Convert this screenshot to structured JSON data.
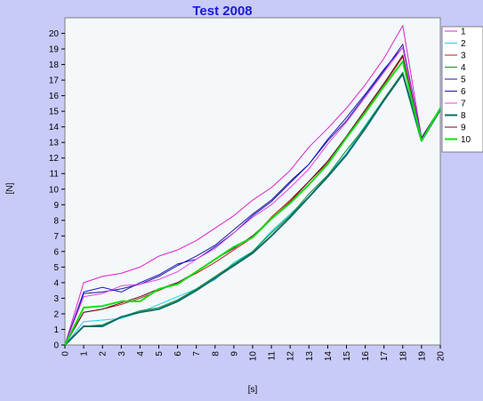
{
  "chart_data": {
    "type": "line",
    "title": "Test 2008",
    "xlabel": "[s]",
    "ylabel": "[N]",
    "xlim": [
      0,
      20
    ],
    "ylim": [
      0,
      21
    ],
    "x": [
      0,
      1,
      2,
      3,
      4,
      5,
      6,
      7,
      8,
      9,
      10,
      11,
      12,
      13,
      14,
      15,
      16,
      17,
      18,
      19,
      20
    ],
    "x_ticks": [
      "0",
      "1",
      "2",
      "3",
      "4",
      "5",
      "6",
      "7",
      "8",
      "9",
      "10",
      "11",
      "12",
      "13",
      "14",
      "15",
      "16",
      "17",
      "18",
      "19",
      "20"
    ],
    "y_ticks": [
      "0",
      "1",
      "2",
      "3",
      "4",
      "5",
      "6",
      "7",
      "8",
      "9",
      "10",
      "11",
      "12",
      "13",
      "14",
      "15",
      "16",
      "17",
      "18",
      "19",
      "20"
    ],
    "grid": false,
    "legend_position": "right",
    "series": [
      {
        "name": "1",
        "color": "#e020c8",
        "width": 1,
        "values": [
          0,
          4.0,
          4.4,
          4.6,
          5.0,
          5.7,
          6.1,
          6.7,
          7.5,
          8.3,
          9.3,
          10.1,
          11.2,
          12.7,
          13.9,
          15.2,
          16.7,
          18.4,
          20.5,
          13.3,
          15.2
        ]
      },
      {
        "name": "2",
        "color": "#10d8e0",
        "width": 1,
        "values": [
          0,
          1.5,
          1.6,
          1.7,
          2.1,
          2.6,
          3.1,
          3.6,
          4.2,
          5.3,
          6.0,
          7.3,
          8.4,
          9.5,
          10.9,
          12.3,
          14.1,
          15.8,
          17.4,
          13.1,
          15.1
        ]
      },
      {
        "name": "3",
        "color": "#c01818",
        "width": 1,
        "values": [
          0,
          2.1,
          2.3,
          2.6,
          3.0,
          3.5,
          4.0,
          4.6,
          5.3,
          6.1,
          6.9,
          8.2,
          9.3,
          10.5,
          11.7,
          13.3,
          15.0,
          16.7,
          18.5,
          13.2,
          15.2
        ]
      },
      {
        "name": "4",
        "color": "#109030",
        "width": 1,
        "values": [
          0,
          1.2,
          1.3,
          1.8,
          2.2,
          2.4,
          2.9,
          3.6,
          4.4,
          5.2,
          6.0,
          7.2,
          8.3,
          9.7,
          10.9,
          12.5,
          14.0,
          15.8,
          17.5,
          13.2,
          15.1
        ]
      },
      {
        "name": "5",
        "color": "#201890",
        "width": 1,
        "values": [
          0,
          3.3,
          3.4,
          3.6,
          3.9,
          4.4,
          5.1,
          5.7,
          6.4,
          7.4,
          8.4,
          9.3,
          10.5,
          11.6,
          13.1,
          14.4,
          16.0,
          17.6,
          19.3,
          13.3,
          15.2
        ]
      },
      {
        "name": "6",
        "color": "#1818c8",
        "width": 1,
        "values": [
          0,
          3.4,
          3.7,
          3.4,
          4.0,
          4.5,
          5.2,
          5.5,
          6.3,
          7.2,
          8.3,
          9.2,
          10.4,
          11.6,
          13.2,
          14.6,
          16.1,
          17.7,
          19.1,
          13.2,
          15.2
        ]
      },
      {
        "name": "7",
        "color": "#e840e8",
        "width": 1,
        "values": [
          0,
          3.1,
          3.3,
          3.8,
          3.9,
          4.2,
          4.7,
          5.5,
          6.2,
          7.2,
          8.2,
          9.0,
          10.1,
          11.3,
          12.9,
          14.3,
          15.9,
          17.5,
          19.1,
          13.2,
          15.2
        ]
      },
      {
        "name": "8",
        "color": "#0e6c6c",
        "width": 2,
        "values": [
          0,
          1.2,
          1.2,
          1.8,
          2.1,
          2.3,
          2.8,
          3.5,
          4.3,
          5.1,
          5.9,
          7.0,
          8.2,
          9.5,
          10.8,
          12.2,
          13.9,
          15.7,
          17.4,
          13.1,
          15.1
        ]
      },
      {
        "name": "9",
        "color": "#600820",
        "width": 1,
        "values": [
          0,
          2.1,
          2.3,
          2.7,
          3.1,
          3.6,
          4.0,
          4.7,
          5.5,
          6.2,
          7.0,
          8.1,
          9.2,
          10.5,
          11.8,
          13.4,
          15.1,
          16.8,
          18.6,
          13.2,
          15.2
        ]
      },
      {
        "name": "10",
        "color": "#10e010",
        "width": 2,
        "values": [
          0,
          2.4,
          2.5,
          2.8,
          2.8,
          3.6,
          3.9,
          4.7,
          5.5,
          6.3,
          6.9,
          8.1,
          9.1,
          10.3,
          11.6,
          13.3,
          14.9,
          16.6,
          18.2,
          13.1,
          15.2
        ]
      }
    ]
  }
}
